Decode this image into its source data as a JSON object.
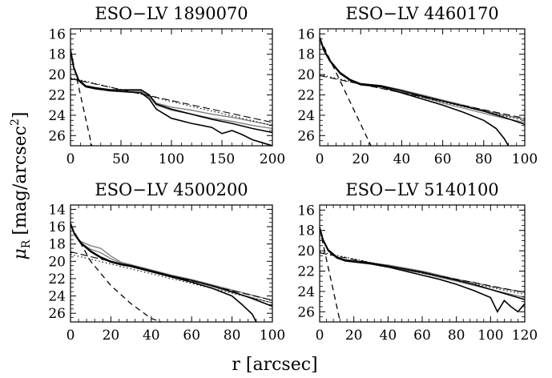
{
  "figure": {
    "xlabel": "r [arcsec]",
    "ylabel_sym": "μ",
    "ylabel_sub": "R",
    "ylabel_unit": "[mag/arcsec",
    "ylabel_sup": "2",
    "ylabel_close": "]"
  },
  "chart_data": [
    {
      "type": "line",
      "title": "ESO−LV 1890070",
      "xlim": [
        0,
        200
      ],
      "ylim": [
        27,
        15.5
      ],
      "ylim_note": "inverted (brighter up)",
      "xticks": [
        "0",
        "50",
        "100",
        "150",
        "200"
      ],
      "xtick_values": [
        0,
        50,
        100,
        150,
        200
      ],
      "yticks": [
        "16",
        "18",
        "20",
        "22",
        "24",
        "26"
      ],
      "ytick_values": [
        16,
        18,
        20,
        22,
        24,
        26
      ],
      "series": [
        {
          "style": "solid-gray",
          "x": [
            0,
            3,
            8,
            15,
            25,
            40,
            55,
            70,
            78,
            85,
            100,
            120,
            140,
            160,
            180,
            200
          ],
          "y": [
            17.5,
            19.2,
            20.5,
            21.1,
            21.3,
            21.5,
            21.5,
            21.6,
            22.1,
            22.8,
            23.2,
            23.5,
            23.9,
            24.2,
            24.6,
            25.0
          ]
        },
        {
          "style": "solid-gray",
          "x": [
            0,
            3,
            8,
            15,
            25,
            40,
            55,
            70,
            78,
            85,
            100,
            120,
            140,
            160,
            180,
            200
          ],
          "y": [
            17.6,
            19.3,
            20.6,
            21.2,
            21.4,
            21.6,
            21.6,
            21.7,
            22.2,
            23.0,
            23.5,
            23.9,
            24.3,
            24.6,
            25.0,
            25.3
          ]
        },
        {
          "style": "solid-black",
          "x": [
            0,
            3,
            8,
            15,
            25,
            40,
            55,
            70,
            78,
            85,
            100,
            120,
            140,
            160,
            180,
            200
          ],
          "y": [
            17.5,
            19.2,
            20.5,
            21.1,
            21.3,
            21.5,
            21.5,
            21.5,
            22.0,
            22.9,
            23.4,
            23.9,
            24.4,
            24.8,
            25.3,
            25.7
          ]
        },
        {
          "style": "solid-black",
          "x": [
            0,
            3,
            8,
            15,
            25,
            40,
            55,
            70,
            78,
            85,
            100,
            120,
            140,
            150,
            160,
            170,
            180,
            190,
            200
          ],
          "y": [
            17.6,
            19.3,
            20.6,
            21.2,
            21.4,
            21.6,
            21.7,
            21.8,
            22.4,
            23.4,
            24.3,
            24.8,
            25.2,
            25.8,
            25.5,
            25.9,
            26.4,
            26.7,
            27.0
          ]
        },
        {
          "style": "dashed",
          "x": [
            0,
            21
          ],
          "y": [
            17.6,
            27
          ]
        },
        {
          "style": "long-dashed",
          "x": [
            0,
            200
          ],
          "y": [
            20.4,
            24.7
          ]
        },
        {
          "style": "dotted",
          "x": [
            0,
            200
          ],
          "y": [
            20.3,
            25.0
          ]
        }
      ]
    },
    {
      "type": "line",
      "title": "ESO−LV 4460170",
      "xlim": [
        0,
        100
      ],
      "ylim": [
        27,
        15.5
      ],
      "xticks": [
        "0",
        "20",
        "40",
        "60",
        "80",
        "100"
      ],
      "xtick_values": [
        0,
        20,
        40,
        60,
        80,
        100
      ],
      "yticks": [
        "16",
        "18",
        "20",
        "22",
        "24",
        "26"
      ],
      "ytick_values": [
        16,
        18,
        20,
        22,
        24,
        26
      ],
      "series": [
        {
          "style": "solid-gray",
          "x": [
            0,
            2,
            5,
            10,
            15,
            20,
            30,
            40,
            50,
            60,
            70,
            80,
            90,
            100
          ],
          "y": [
            16.3,
            17.5,
            18.6,
            19.8,
            20.5,
            20.9,
            21.1,
            21.5,
            22.0,
            22.5,
            23.0,
            23.5,
            24.0,
            24.4
          ]
        },
        {
          "style": "solid-gray",
          "x": [
            0,
            2,
            5,
            10,
            15,
            20,
            30,
            40,
            50,
            60,
            70,
            80,
            90,
            100
          ],
          "y": [
            16.4,
            17.6,
            18.7,
            19.9,
            20.6,
            21.0,
            21.2,
            21.7,
            22.2,
            22.8,
            23.3,
            23.8,
            24.3,
            24.7
          ]
        },
        {
          "style": "solid-black",
          "x": [
            0,
            2,
            5,
            10,
            15,
            20,
            30,
            40,
            50,
            60,
            70,
            80,
            90,
            100
          ],
          "y": [
            16.3,
            17.5,
            18.6,
            19.8,
            20.5,
            20.9,
            21.1,
            21.6,
            22.1,
            22.6,
            23.1,
            23.6,
            24.2,
            24.9
          ]
        },
        {
          "style": "solid-black",
          "x": [
            0,
            2,
            5,
            10,
            15,
            20,
            30,
            40,
            50,
            60,
            70,
            80,
            86,
            90,
            92
          ],
          "y": [
            16.4,
            17.6,
            18.7,
            19.9,
            20.6,
            21.0,
            21.2,
            21.8,
            22.4,
            23.0,
            23.7,
            24.5,
            25.3,
            26.3,
            27.0
          ]
        },
        {
          "style": "dashed",
          "x": [
            0,
            25
          ],
          "y": [
            16.4,
            27
          ]
        },
        {
          "style": "long-dashed",
          "x": [
            0,
            100
          ],
          "y": [
            20.1,
            24.3
          ]
        },
        {
          "style": "dotted",
          "x": [
            0,
            100
          ],
          "y": [
            20.0,
            24.5
          ]
        }
      ]
    },
    {
      "type": "line",
      "title": "ESO−LV 4500200",
      "xlim": [
        0,
        100
      ],
      "ylim": [
        27,
        13.5
      ],
      "xticks": [
        "0",
        "20",
        "40",
        "60",
        "80",
        "100"
      ],
      "xtick_values": [
        0,
        20,
        40,
        60,
        80,
        100
      ],
      "yticks": [
        "14",
        "16",
        "18",
        "20",
        "22",
        "24",
        "26"
      ],
      "ytick_values": [
        14,
        16,
        18,
        20,
        22,
        24,
        26
      ],
      "series": [
        {
          "style": "solid-gray",
          "x": [
            0,
            2,
            5,
            10,
            15,
            20,
            25,
            30,
            40,
            50,
            60,
            70,
            80,
            90,
            100
          ],
          "y": [
            15.6,
            16.8,
            17.7,
            18.2,
            18.5,
            19.4,
            20.1,
            20.4,
            21.0,
            21.6,
            22.1,
            22.7,
            23.3,
            23.9,
            24.5
          ]
        },
        {
          "style": "solid-gray",
          "x": [
            0,
            2,
            5,
            10,
            15,
            20,
            25,
            30,
            40,
            50,
            60,
            70,
            80,
            90,
            100
          ],
          "y": [
            15.7,
            16.9,
            17.9,
            18.6,
            19.0,
            19.7,
            20.2,
            20.5,
            21.1,
            21.7,
            22.2,
            22.9,
            23.6,
            24.2,
            24.8
          ]
        },
        {
          "style": "solid-black",
          "x": [
            0,
            2,
            5,
            10,
            15,
            20,
            25,
            30,
            40,
            50,
            60,
            70,
            80,
            90,
            100
          ],
          "y": [
            15.6,
            16.8,
            17.8,
            18.8,
            19.5,
            20.0,
            20.3,
            20.5,
            21.1,
            21.7,
            22.2,
            22.8,
            23.5,
            24.3,
            25.2
          ]
        },
        {
          "style": "solid-black",
          "x": [
            0,
            2,
            5,
            10,
            15,
            20,
            25,
            30,
            40,
            50,
            60,
            70,
            80,
            85,
            90,
            92
          ],
          "y": [
            15.7,
            16.9,
            17.9,
            18.9,
            19.6,
            20.1,
            20.4,
            20.6,
            21.2,
            21.8,
            22.4,
            23.1,
            24.0,
            25.0,
            26.1,
            27.0
          ]
        },
        {
          "style": "dashed",
          "x": [
            0,
            10,
            20,
            30,
            40,
            45
          ],
          "y": [
            15.8,
            20.0,
            22.8,
            24.9,
            26.6,
            27.0
          ]
        },
        {
          "style": "long-dashed",
          "x": [
            0,
            100
          ],
          "y": [
            18.9,
            24.5
          ]
        },
        {
          "style": "dotted",
          "x": [
            0,
            100
          ],
          "y": [
            19.2,
            24.8
          ]
        }
      ]
    },
    {
      "type": "line",
      "title": "ESO−LV 5140100",
      "xlim": [
        0,
        120
      ],
      "ylim": [
        27,
        15.5
      ],
      "xticks": [
        "0",
        "20",
        "40",
        "60",
        "80",
        "100",
        "120"
      ],
      "xtick_values": [
        0,
        20,
        40,
        60,
        80,
        100,
        120
      ],
      "yticks": [
        "16",
        "18",
        "20",
        "22",
        "24",
        "26"
      ],
      "ytick_values": [
        16,
        18,
        20,
        22,
        24,
        26
      ],
      "series": [
        {
          "style": "solid-gray",
          "x": [
            0,
            2,
            5,
            10,
            15,
            20,
            30,
            40,
            50,
            60,
            70,
            80,
            90,
            100,
            110,
            120
          ],
          "y": [
            17.7,
            18.9,
            19.9,
            20.6,
            20.9,
            21.0,
            21.2,
            21.4,
            21.7,
            22.0,
            22.4,
            22.8,
            23.1,
            23.5,
            23.8,
            24.1
          ]
        },
        {
          "style": "solid-gray",
          "x": [
            0,
            2,
            5,
            10,
            15,
            20,
            30,
            40,
            50,
            60,
            70,
            80,
            90,
            100,
            110,
            120
          ],
          "y": [
            17.8,
            19.0,
            20.0,
            20.7,
            21.0,
            21.1,
            21.3,
            21.6,
            21.9,
            22.2,
            22.6,
            23.0,
            23.4,
            23.8,
            24.2,
            24.6
          ]
        },
        {
          "style": "solid-black",
          "x": [
            0,
            2,
            5,
            10,
            15,
            20,
            30,
            40,
            50,
            60,
            70,
            80,
            90,
            100,
            110,
            120
          ],
          "y": [
            17.7,
            18.9,
            19.9,
            20.6,
            20.9,
            21.0,
            21.2,
            21.5,
            21.8,
            22.1,
            22.5,
            22.9,
            23.3,
            23.8,
            24.3,
            24.8
          ]
        },
        {
          "style": "solid-black",
          "x": [
            0,
            2,
            5,
            10,
            15,
            20,
            30,
            40,
            50,
            60,
            70,
            80,
            90,
            100,
            104,
            108,
            112,
            116,
            120
          ],
          "y": [
            17.8,
            19.0,
            20.0,
            20.7,
            21.0,
            21.1,
            21.3,
            21.6,
            22.0,
            22.4,
            22.8,
            23.3,
            23.9,
            24.6,
            26.0,
            24.9,
            25.5,
            26.0,
            25.2
          ]
        },
        {
          "style": "dashed",
          "x": [
            0,
            12
          ],
          "y": [
            17.8,
            27
          ]
        },
        {
          "style": "long-dashed",
          "x": [
            0,
            120
          ],
          "y": [
            20.2,
            24.1
          ]
        },
        {
          "style": "dotted",
          "x": [
            0,
            120
          ],
          "y": [
            20.1,
            24.3
          ]
        }
      ]
    }
  ]
}
